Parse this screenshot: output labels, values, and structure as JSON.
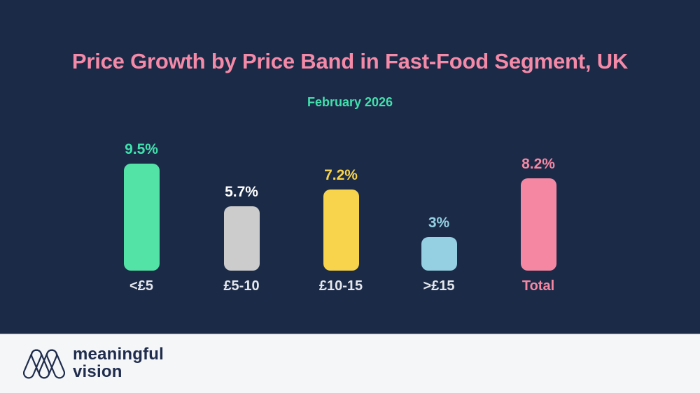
{
  "title": "Price Growth by Price Band in Fast-Food Segment, UK",
  "subtitle": "February 2026",
  "colors": {
    "background": "#1B2A47",
    "title": "#F58AA8",
    "subtitle": "#41E1AD",
    "footer_background": "#F5F6F7",
    "brand_text": "#1F2C4D",
    "category_label_default": "#E4E7EC"
  },
  "chart_data": {
    "type": "bar",
    "title": "Price Growth by Price Band in Fast-Food Segment, UK",
    "subtitle": "February 2026",
    "categories": [
      "<£5",
      "£5-10",
      "£10-15",
      ">£15",
      "Total"
    ],
    "values": [
      9.5,
      5.7,
      7.2,
      3,
      8.2
    ],
    "value_labels": [
      "9.5%",
      "5.7%",
      "7.2%",
      "3%",
      "8.2%"
    ],
    "unit": "%",
    "bar_colors": [
      "#53E3A6",
      "#CCCCCC",
      "#F8D44C",
      "#95CFE2",
      "#F687A3"
    ],
    "value_label_colors": [
      "#41E1AD",
      "#FFFFFF",
      "#F8D44C",
      "#95CFE2",
      "#F687A3"
    ],
    "category_label_colors": [
      "#E4E7EC",
      "#E4E7EC",
      "#E4E7EC",
      "#E4E7EC",
      "#F687A3"
    ],
    "ylim": [
      0,
      10
    ],
    "grid": false,
    "legend": false
  },
  "footer": {
    "brand_line1": "meaningful",
    "brand_line2": "vision"
  }
}
